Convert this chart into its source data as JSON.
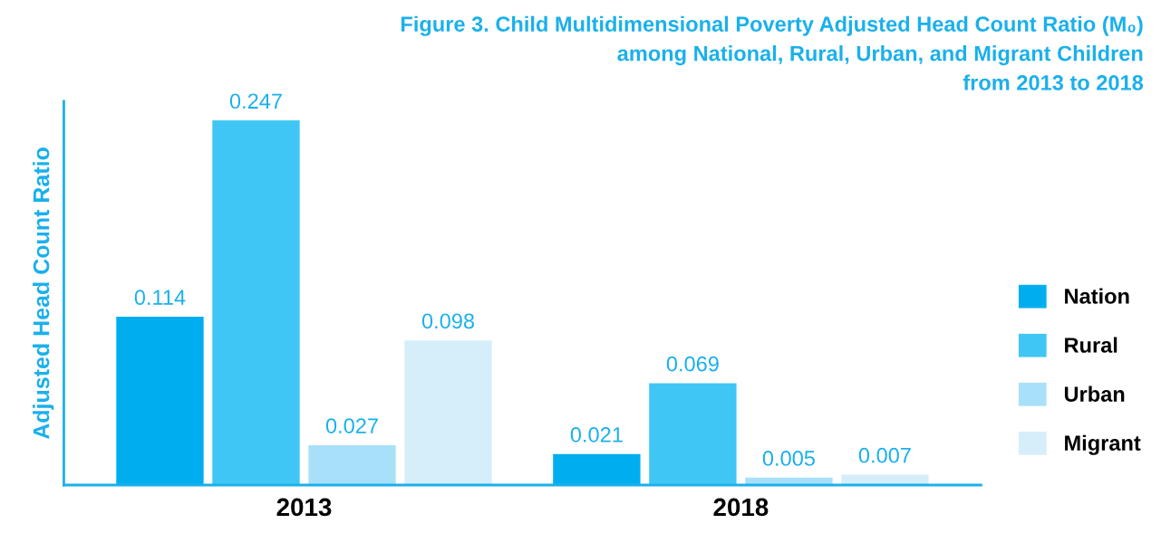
{
  "chart_data": {
    "type": "bar",
    "title": "Figure 3. Child Multidimensional Poverty Adjusted Head Count Ratio (M₀)\namong National, Rural, Urban, and Migrant Children\nfrom 2013 to 2018",
    "ylabel": "Adjusted Head Count Ratio",
    "categories": [
      "2013",
      "2018"
    ],
    "series": [
      {
        "name": "Nation",
        "color": "#00aeef",
        "values": [
          0.114,
          0.021
        ]
      },
      {
        "name": "Rural",
        "color": "#40c6f4",
        "values": [
          0.247,
          0.069
        ]
      },
      {
        "name": "Urban",
        "color": "#a9e0f9",
        "values": [
          0.027,
          0.005
        ]
      },
      {
        "name": "Migrant",
        "color": "#d5eefa",
        "values": [
          0.098,
          0.007
        ]
      }
    ],
    "ylim": [
      0,
      0.26
    ],
    "tick_labels": "x",
    "data_labels": true,
    "legend": "right",
    "grid": false
  }
}
